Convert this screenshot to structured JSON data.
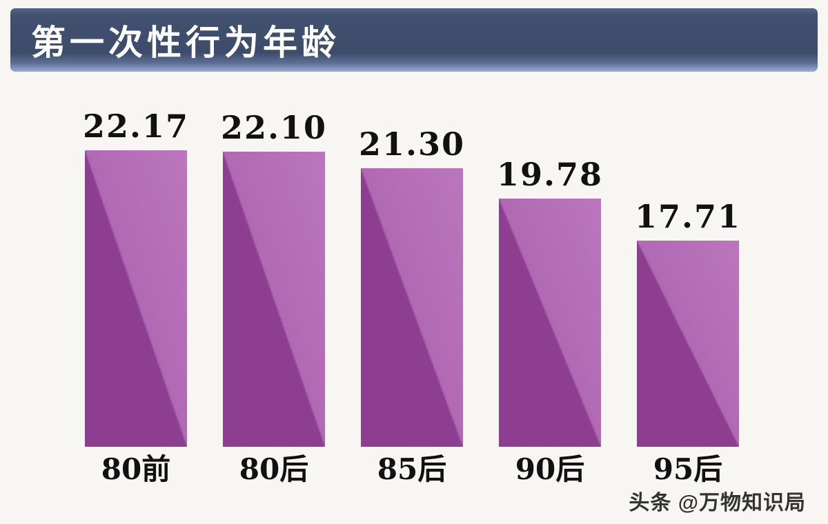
{
  "title": "第一次性行为年龄",
  "watermark": "头条 @万物知识局",
  "chart_data": {
    "type": "bar",
    "title": "第一次性行为年龄",
    "categories": [
      "80前",
      "80后",
      "85后",
      "90后",
      "95后"
    ],
    "values": [
      22.17,
      22.1,
      21.3,
      19.78,
      17.71
    ],
    "value_labels": [
      "22.17",
      "22.10",
      "21.30",
      "19.78",
      "17.71"
    ],
    "xlabel": "",
    "ylabel": "",
    "ylim": [
      7.5,
      22.17
    ],
    "grid": false,
    "legend": false,
    "bar_colors": {
      "dark": "#8e3e90",
      "light": "#b169b3"
    }
  },
  "colors": {
    "background": "#f7f6f3",
    "banner_edge": "#9aabd2",
    "title_text": "#ffffff",
    "label_text": "#111111",
    "watermark_text": "#333333"
  }
}
